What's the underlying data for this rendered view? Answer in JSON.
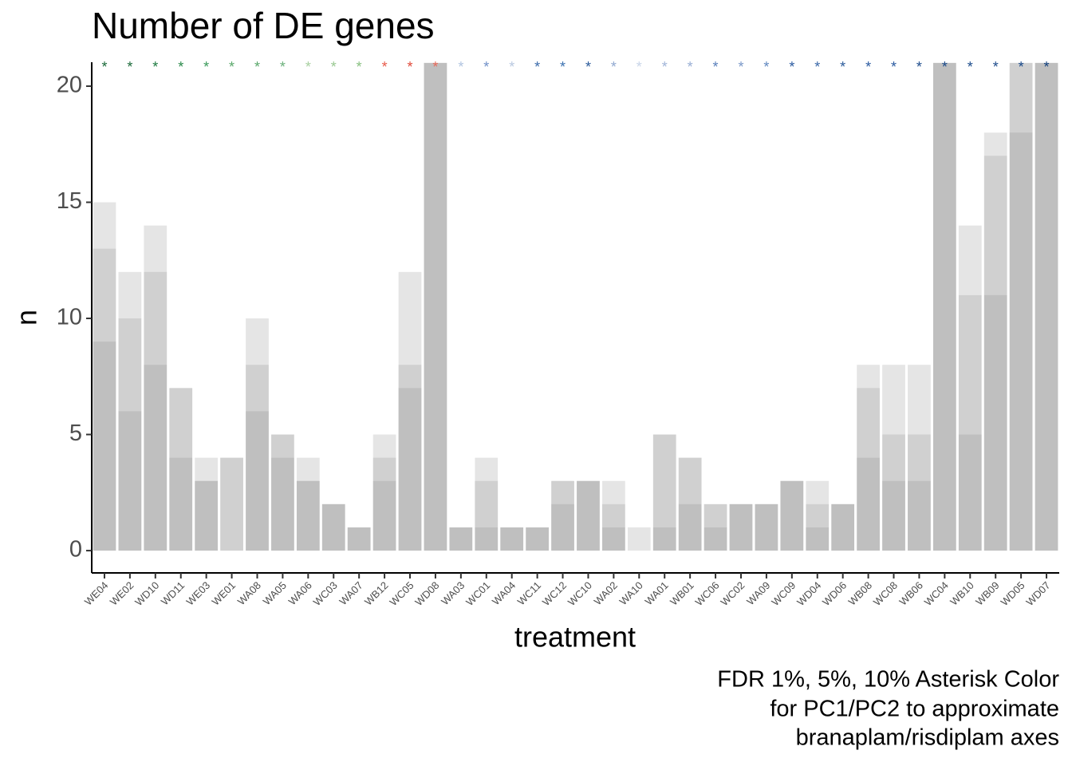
{
  "chart_data": {
    "type": "bar",
    "title": "Number of DE genes",
    "xlabel": "treatment",
    "ylabel": "n",
    "caption": [
      "FDR 1%, 5%, 10% Asterisk Color",
      "for PC1/PC2 to approximate",
      "branaplam/risdiplam axes"
    ],
    "categories": [
      "WE04",
      "WE02",
      "WD10",
      "WD11",
      "WE03",
      "WE01",
      "WA08",
      "WA05",
      "WA06",
      "WC03",
      "WA07",
      "WB12",
      "WC05",
      "WD08",
      "WA03",
      "WC01",
      "WA04",
      "WC11",
      "WC12",
      "WC10",
      "WA02",
      "WA10",
      "WA01",
      "WB01",
      "WC06",
      "WC02",
      "WA09",
      "WC09",
      "WD04",
      "WD06",
      "WB08",
      "WC08",
      "WB06",
      "WC04",
      "WB10",
      "WB09",
      "WD05",
      "WD07"
    ],
    "series": [
      {
        "color": "#7f7f7f",
        "values": [
          9,
          6,
          8,
          4,
          3,
          0,
          6,
          4,
          3,
          2,
          1,
          3,
          7,
          21,
          1,
          1,
          1,
          1,
          2,
          3,
          1,
          0,
          1,
          2,
          1,
          2,
          2,
          3,
          1,
          2,
          4,
          3,
          3,
          21,
          5,
          11,
          18,
          21
        ]
      },
      {
        "color": "#7f7f7f",
        "values": [
          13,
          10,
          12,
          7,
          3,
          4,
          8,
          5,
          3,
          2,
          1,
          4,
          8,
          21,
          1,
          3,
          1,
          1,
          3,
          3,
          2,
          0,
          5,
          4,
          2,
          2,
          2,
          3,
          2,
          2,
          7,
          5,
          5,
          21,
          11,
          17,
          21,
          21
        ]
      },
      {
        "color": "#7f7f7f",
        "values": [
          15,
          12,
          14,
          7,
          4,
          4,
          10,
          5,
          4,
          2,
          1,
          5,
          12,
          21,
          1,
          4,
          1,
          1,
          3,
          3,
          3,
          1,
          5,
          4,
          2,
          2,
          2,
          3,
          3,
          2,
          8,
          8,
          8,
          21,
          14,
          18,
          21,
          21
        ]
      }
    ],
    "bar_opacity": 0.2,
    "asterisk": "*",
    "asterisk_colors": [
      "#1b6b3a",
      "#1b6b3a",
      "#1e7a40",
      "#2a8a4a",
      "#3a9a5a",
      "#5aa86a",
      "#5aa86a",
      "#6ab07a",
      "#a8d0a0",
      "#98c890",
      "#88c080",
      "#e85a4a",
      "#e04a3a",
      "#e86a5a",
      "#b0c4e0",
      "#7090c8",
      "#b8c8e0",
      "#3a6aaa",
      "#3a70b0",
      "#2a5a9a",
      "#90a8d0",
      "#c8d4e8",
      "#a0b4d8",
      "#98aed4",
      "#5a80bc",
      "#7a98c8",
      "#6088c0",
      "#2a5aa0",
      "#3a68a8",
      "#2a5a9a",
      "#2a5aa0",
      "#2a5aa0",
      "#1e4c8c",
      "#1a4a8a",
      "#1a4a8a",
      "#1e4c8c",
      "#1a4a8a",
      "#12407e"
    ],
    "ylim": [
      -0.96,
      21.03
    ],
    "yticks": [
      0,
      5,
      10,
      15,
      20
    ],
    "grid": false
  }
}
